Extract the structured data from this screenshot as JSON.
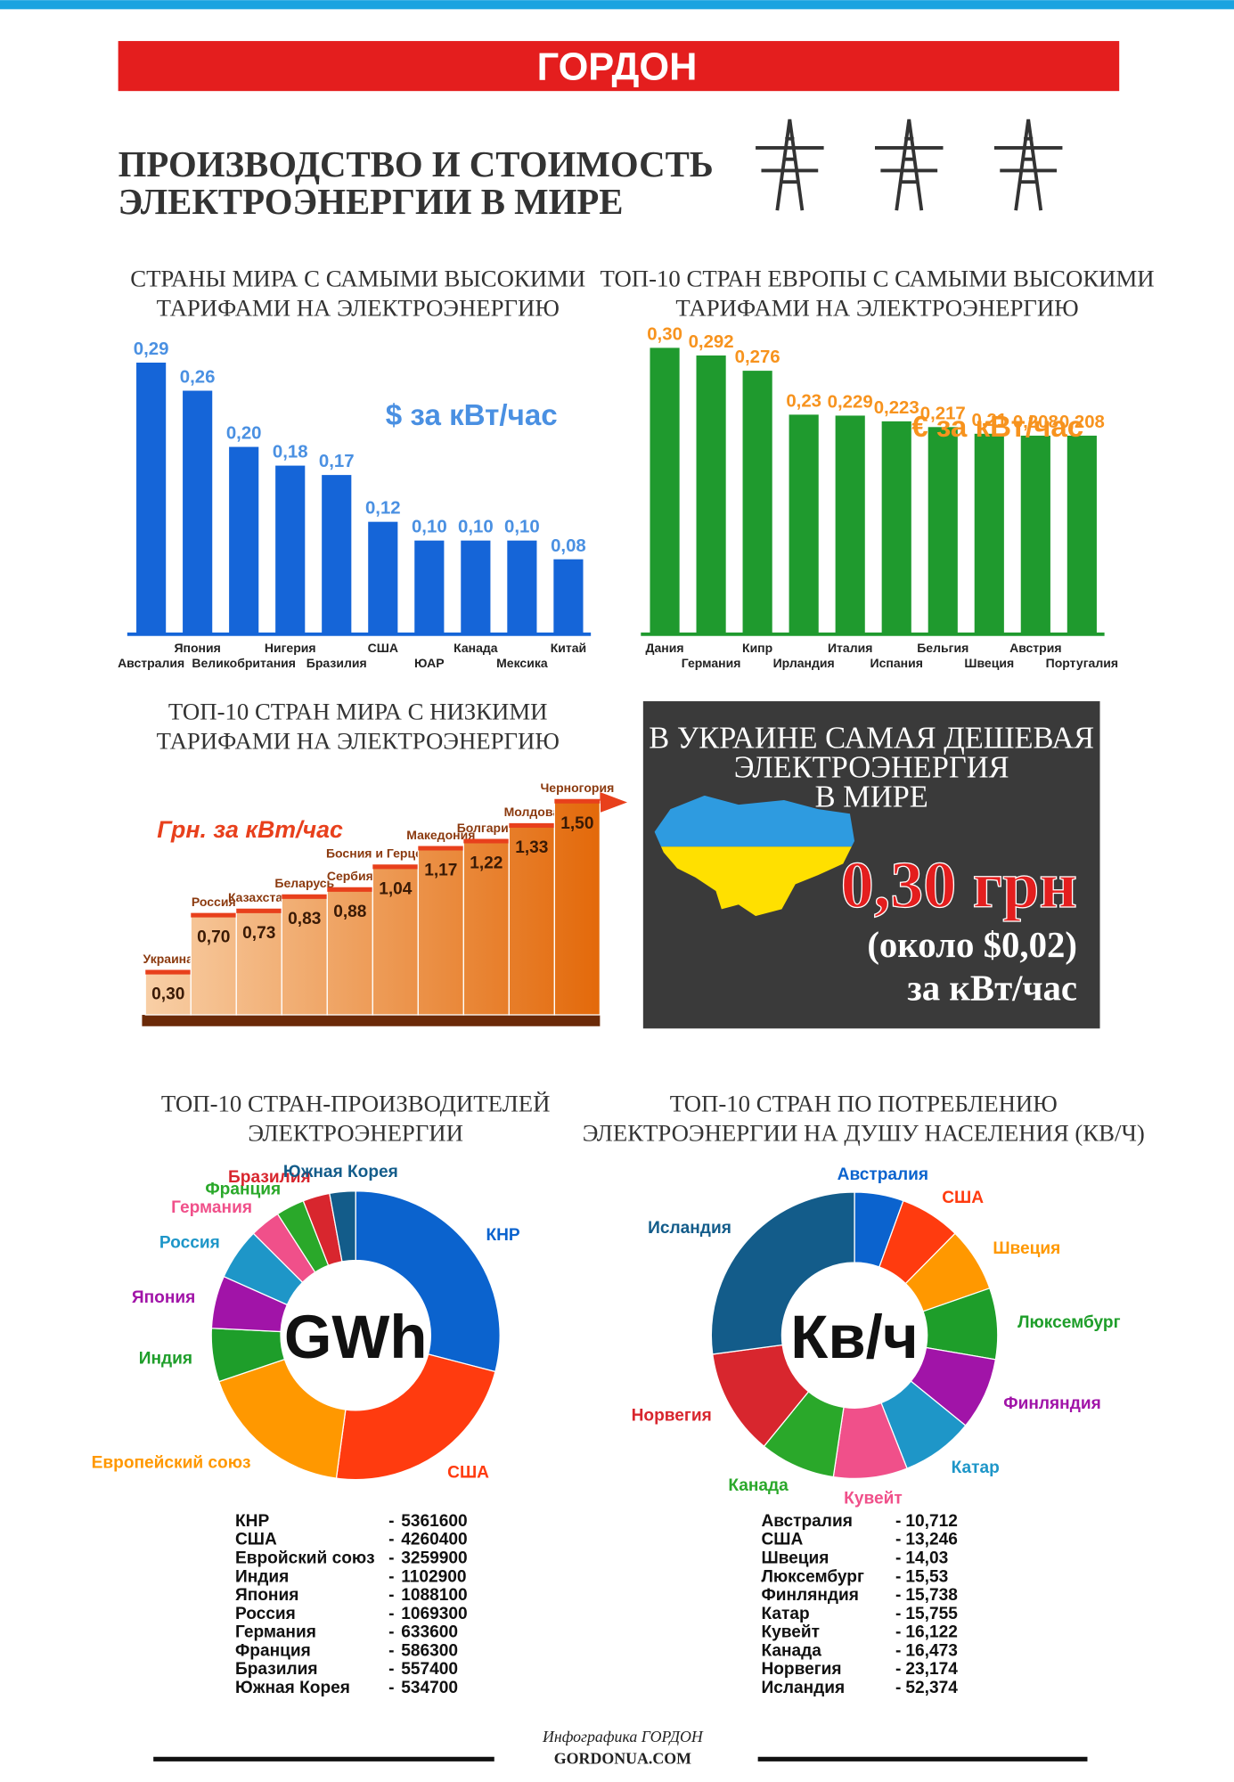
{
  "header": {
    "brand": "ГОРДОН",
    "title": [
      "ПРОИЗВОДСТВО И СТОИМОСТЬ",
      "ЭЛЕКТРОЭНЕРГИИ В МИРЕ"
    ]
  },
  "chart_data": [
    {
      "type": "bar",
      "title": [
        "СТРАНЫ МИРА С САМЫМИ ВЫСОКИМИ",
        "ТАРИФАМИ НА ЭЛЕКТРОЭНЕРГИЮ"
      ],
      "unit": "$ за кВт/час",
      "color": "#1565d8",
      "label_color": "#4a90e2",
      "categories": [
        "Австралия",
        "Япония",
        "Великобритания",
        "Нигерия",
        "Бразилия",
        "США",
        "ЮАР",
        "Канада",
        "Мексика",
        "Китай"
      ],
      "values": [
        0.29,
        0.26,
        0.2,
        0.18,
        0.17,
        0.12,
        0.1,
        0.1,
        0.1,
        0.08
      ],
      "value_labels": [
        "0,29",
        "0,26",
        "0,20",
        "0,18",
        "0,17",
        "0,12",
        "0,10",
        "0,10",
        "0,10",
        "0,08"
      ]
    },
    {
      "type": "bar",
      "title": [
        "ТОП-10 СТРАН ЕВРОПЫ С САМЫМИ ВЫСОКИМИ",
        "ТАРИФАМИ НА ЭЛЕКТРОЭНЕРГИЮ"
      ],
      "unit": "€ за кВт/час",
      "color": "#1f9a2e",
      "label_color": "#f7931e",
      "categories": [
        "Дания",
        "Германия",
        "Кипр",
        "Ирландия",
        "Италия",
        "Испания",
        "Бельгия",
        "Швеция",
        "Австрия",
        "Португалия"
      ],
      "values": [
        0.3,
        0.292,
        0.276,
        0.23,
        0.229,
        0.223,
        0.217,
        0.21,
        0.208,
        0.208
      ],
      "value_labels": [
        "0,30",
        "0,292",
        "0,276",
        "0,23",
        "0,229",
        "0,223",
        "0,217",
        "0,21",
        "0,208",
        "0,208"
      ]
    },
    {
      "type": "step",
      "title": [
        "ТОП-10 СТРАН МИРА С НИЗКИМИ",
        "ТАРИФАМИ НА ЭЛЕКТРОЭНЕРГИЮ"
      ],
      "unit": "Грн. за кВт/час",
      "color": "#e8401c",
      "label_color": "#8b3a0f",
      "categories": [
        "Украина",
        "Россия",
        "Казахстан",
        "Беларусь",
        "Сербия",
        "Босния и Герцеговина",
        "Македония",
        "Болгария",
        "Молдова",
        "Черногория"
      ],
      "values": [
        0.3,
        0.7,
        0.73,
        0.83,
        0.88,
        1.04,
        1.17,
        1.22,
        1.33,
        1.5
      ],
      "value_labels": [
        "0,30",
        "0,70",
        "0,73",
        "0,83",
        "0,88",
        "1,04",
        "1,17",
        "1,22",
        "1,33",
        "1,50"
      ]
    },
    {
      "type": "donut",
      "title": [
        "ТОП-10 СТРАН-ПРОИЗВОДИТЕЛЕЙ",
        "ЭЛЕКТРОЭНЕРГИИ"
      ],
      "center_label": "GWh",
      "categories": [
        "КНР",
        "США",
        "Европейский союз",
        "Индия",
        "Япония",
        "Россия",
        "Германия",
        "Франция",
        "Бразилия",
        "Южная Корея"
      ],
      "colors": [
        "#0b63ce",
        "#ff3b0f",
        "#ff9800",
        "#1e9e2a",
        "#a114a8",
        "#1e96c8",
        "#f0508a",
        "#2aa82a",
        "#d8262e",
        "#135c8a"
      ],
      "values": [
        5361600,
        4260400,
        3259900,
        1102900,
        1088100,
        1069300,
        633600,
        586300,
        557400,
        534700
      ],
      "table_labels": [
        "КНР",
        "США",
        "Евройский союз",
        "Индия",
        "Япония",
        "Россия",
        "Германия",
        "Франция",
        "Бразилия",
        "Южная Корея"
      ],
      "table_prefix": "-"
    },
    {
      "type": "donut",
      "title": [
        "ТОП-10 СТРАН ПО ПОТРЕБЛЕНИЮ",
        "ЭЛЕКТРОЭНЕРГИИ НА ДУШУ НАСЕЛЕНИЯ (КВ/Ч)"
      ],
      "center_label": "Кв/ч",
      "categories": [
        "Австралия",
        "США",
        "Швеция",
        "Люксембург",
        "Финляндия",
        "Катар",
        "Кувейт",
        "Канада",
        "Норвегия",
        "Исландия"
      ],
      "colors": [
        "#0b63ce",
        "#ff3b0f",
        "#ff9800",
        "#1e9e2a",
        "#a114a8",
        "#1e96c8",
        "#f0508a",
        "#2aa82a",
        "#d8262e",
        "#135c8a"
      ],
      "values": [
        10.712,
        13.246,
        14.03,
        15.53,
        15.738,
        15.755,
        16.122,
        16.473,
        23.174,
        52.374
      ],
      "value_labels": [
        "10,712",
        "13,246",
        "14,03",
        "15,53",
        "15,738",
        "15,755",
        "16,122",
        "16,473",
        "23,174",
        "52,374"
      ],
      "table_labels": [
        "Австралия",
        "США",
        "Швеция",
        "Люксембург",
        "Финляндия",
        "Катар",
        "Кувейт",
        "Канада",
        "Норвегия",
        "Исландия"
      ],
      "table_prefix": "-"
    }
  ],
  "callout": {
    "title": [
      "В УКРАИНЕ САМАЯ ДЕШЕВАЯ",
      "ЭЛЕКТРОЭНЕРГИЯ",
      "В МИРЕ"
    ],
    "price": "0,30 грн",
    "usd": "(около $0,02)",
    "unit": "за кВт/час"
  },
  "footer": {
    "credit": "Инфографика ГОРДОН",
    "site": "GORDONUA.COM"
  }
}
